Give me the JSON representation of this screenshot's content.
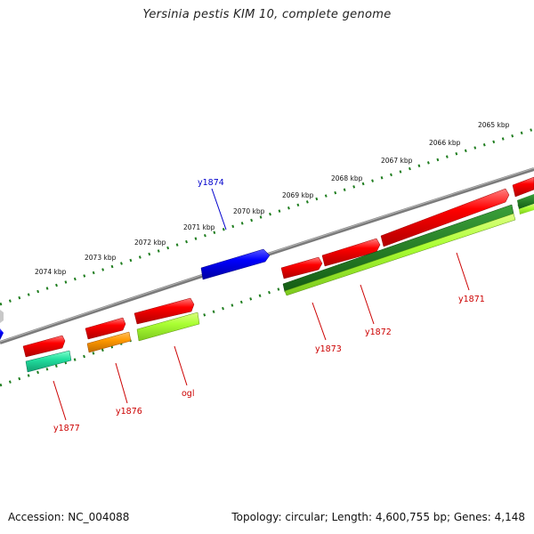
{
  "title": "Yersinia pestis KIM 10, complete genome",
  "footer": {
    "accession": "Accession: NC_004088",
    "topology": "Topology: circular; Length: 4,600,755 bp; Genes: 4,148"
  },
  "colors": {
    "backbone": "#808080",
    "tick": "#1e7d1e",
    "forward_gene": "#ff0000",
    "reverse_gene_blue": "#0000ff",
    "label_red": "#cc0000",
    "label_blue": "#0000cc"
  },
  "kbp_labels": [
    "2065 kbp",
    "2066 kbp",
    "2067 kbp",
    "2068 kbp",
    "2069 kbp",
    "2070 kbp",
    "2071 kbp",
    "2072 kbp",
    "2073 kbp",
    "2074 kbp"
  ],
  "gene_labels": [
    {
      "text": "y1874",
      "color": "#0000cc"
    },
    {
      "text": "y1871",
      "color": "#cc0000"
    },
    {
      "text": "y1872",
      "color": "#cc0000"
    },
    {
      "text": "y1873",
      "color": "#cc0000"
    },
    {
      "text": "ogl",
      "color": "#cc0000"
    },
    {
      "text": "y1876",
      "color": "#cc0000"
    },
    {
      "text": "y1877",
      "color": "#cc0000"
    }
  ]
}
